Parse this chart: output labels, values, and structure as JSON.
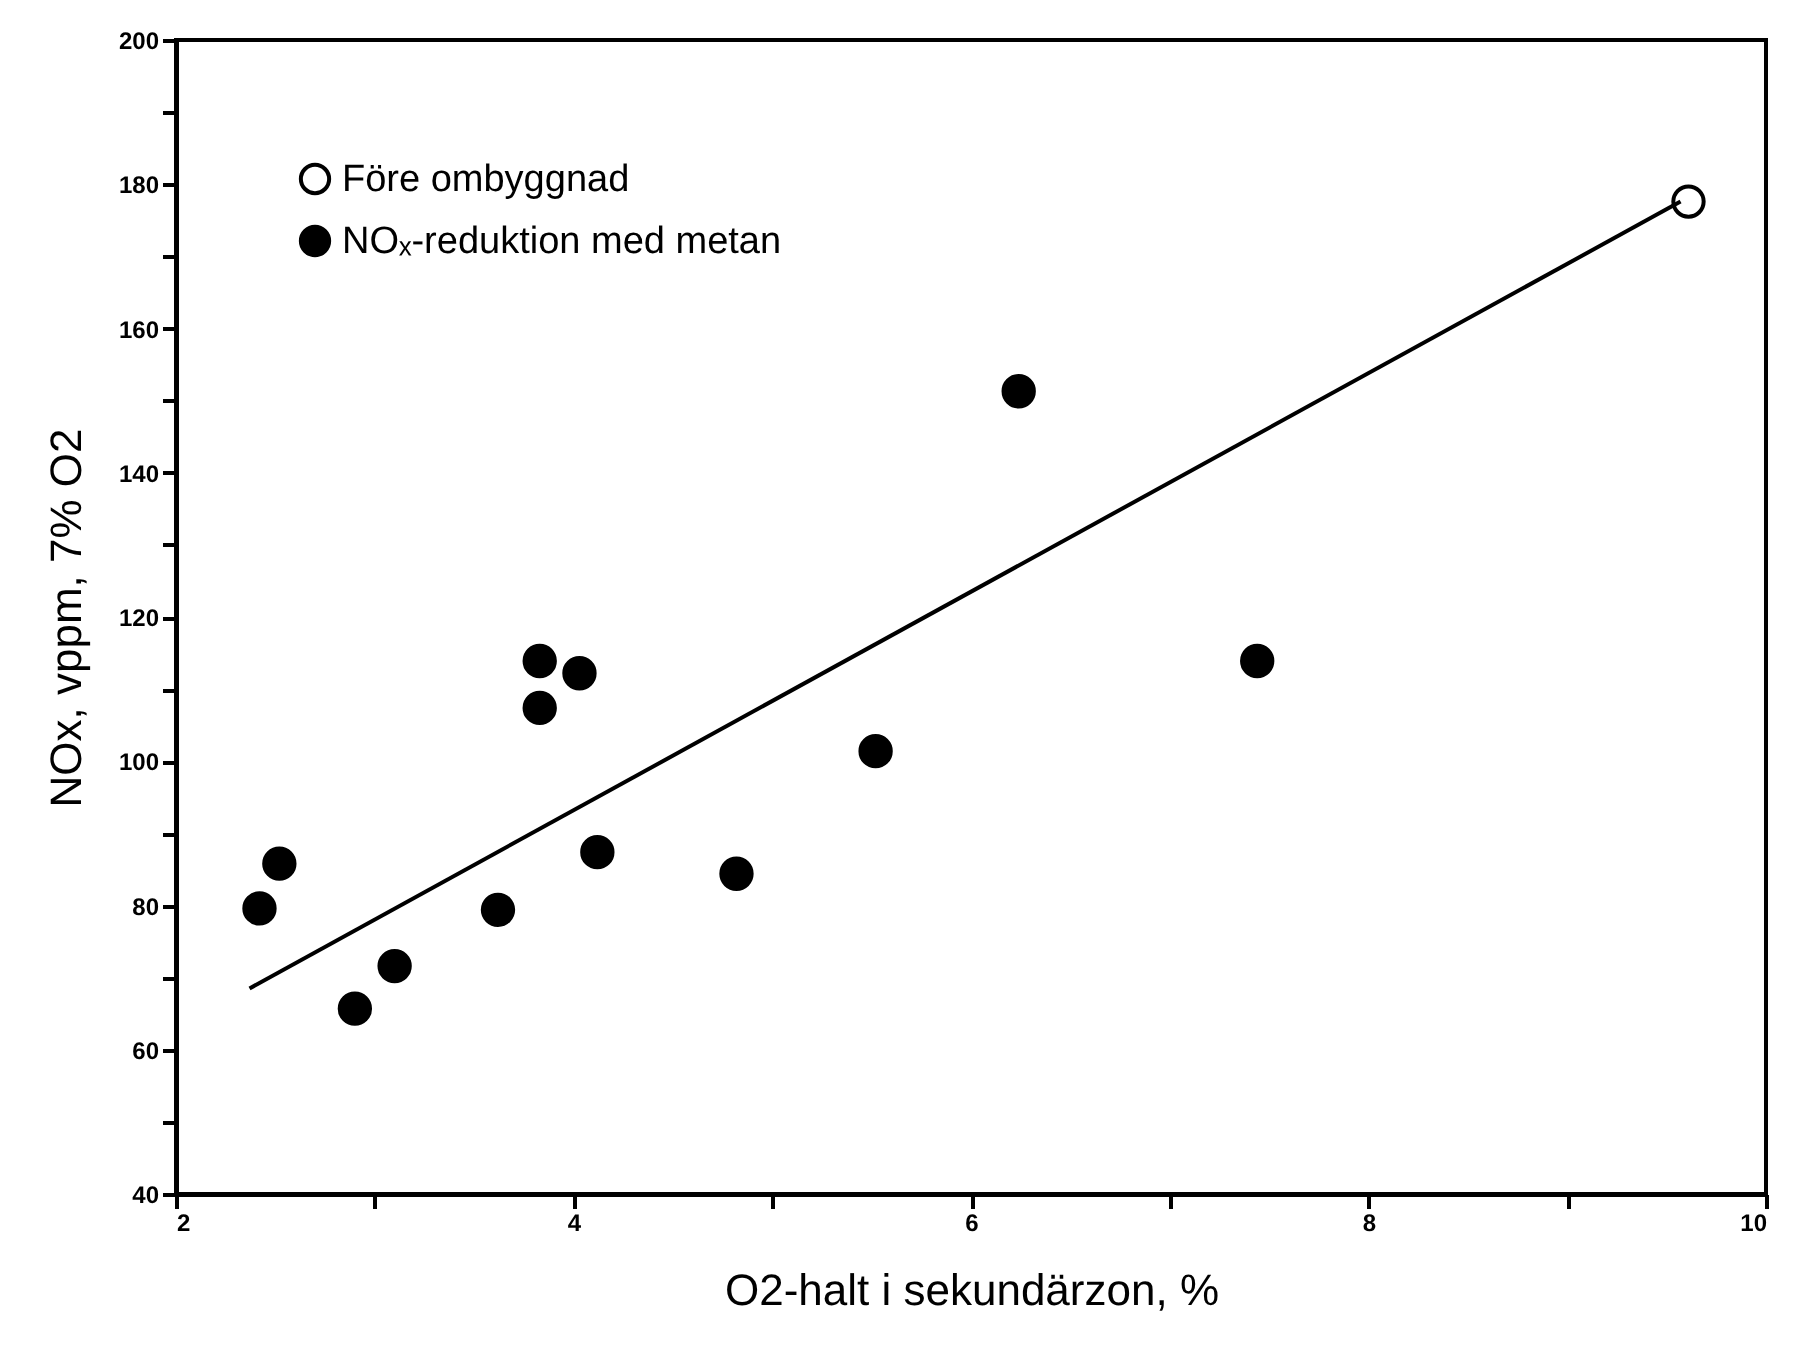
{
  "chart_data": {
    "type": "scatter",
    "xlabel": "O2-halt i sekundärzon, %",
    "ylabel": "NOx, vppm, 7% O2",
    "xlim": [
      2,
      10
    ],
    "ylim": [
      40,
      200
    ],
    "xticks": [
      2,
      {
        "value": 3,
        "label": null
      },
      4,
      {
        "value": 5,
        "label": null
      },
      6,
      {
        "value": 7,
        "label": null
      },
      8,
      {
        "value": 9,
        "label": null
      },
      10
    ],
    "yticks": [
      40,
      {
        "value": 50,
        "label": null
      },
      60,
      {
        "value": 70,
        "label": null
      },
      80,
      {
        "value": 90,
        "label": null
      },
      100,
      {
        "value": 110,
        "label": null
      },
      120,
      {
        "value": 130,
        "label": null
      },
      140,
      {
        "value": 150,
        "label": null
      },
      160,
      {
        "value": 170,
        "label": null
      },
      180,
      {
        "value": 190,
        "label": null
      },
      200
    ],
    "marker": "circle",
    "legend": "top left",
    "grid": false,
    "series": [
      {
        "name": "Före ombyggnad",
        "color": "#ffffff",
        "x": [
          9.61
        ],
        "values": [
          177.6
        ]
      },
      {
        "name": "NOₓ-reduktion med metan",
        "color": "#000000",
        "x": [
          2.42,
          2.52,
          2.9,
          3.1,
          3.62,
          3.83,
          3.83,
          4.03,
          4.12,
          4.82,
          5.52,
          6.24,
          7.44
        ],
        "values": [
          79.6,
          85.8,
          65.7,
          71.6,
          79.4,
          113.9,
          107.4,
          112.2,
          87.4,
          84.4,
          101.4,
          151.3,
          113.9
        ]
      },
      {
        "type": "line",
        "marker": "none",
        "color": "#000000",
        "x": [
          2.37,
          9.57
        ],
        "values": [
          68.5,
          177.6
        ]
      }
    ]
  }
}
